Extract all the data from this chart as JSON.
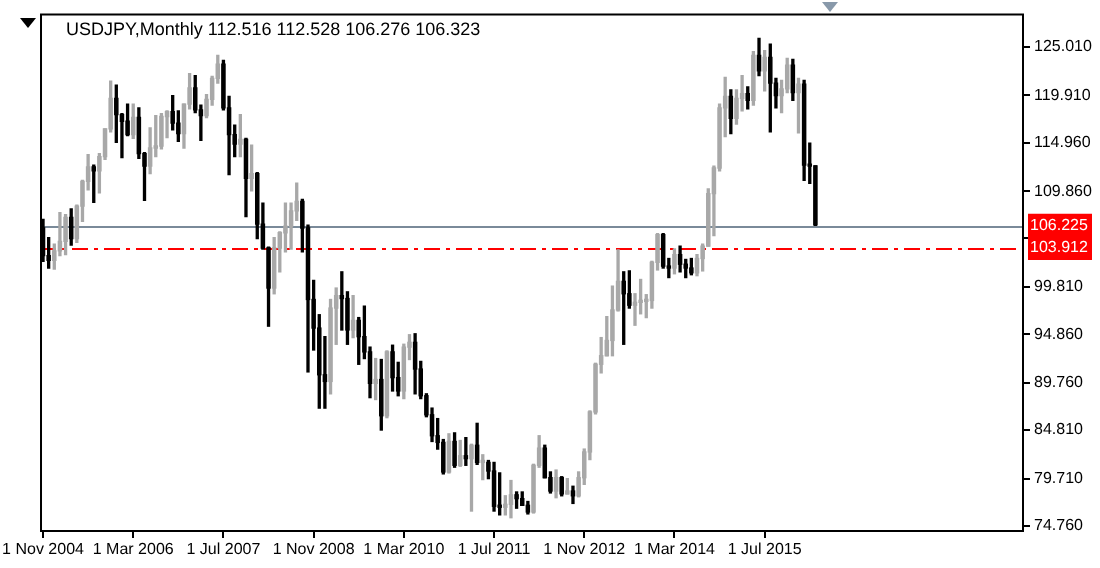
{
  "chart_data": {
    "type": "candlestick",
    "title": "USDJPY,Monthly 112.516 112.528 106.276 106.323",
    "x": [
      "2004-11",
      "2004-12",
      "2005-01",
      "2005-02",
      "2005-03",
      "2005-04",
      "2005-05",
      "2005-06",
      "2005-07",
      "2005-08",
      "2005-09",
      "2005-10",
      "2005-11",
      "2005-12",
      "2006-01",
      "2006-02",
      "2006-03",
      "2006-04",
      "2006-05",
      "2006-06",
      "2006-07",
      "2006-08",
      "2006-09",
      "2006-10",
      "2006-11",
      "2006-12",
      "2007-01",
      "2007-02",
      "2007-03",
      "2007-04",
      "2007-05",
      "2007-06",
      "2007-07",
      "2007-08",
      "2007-09",
      "2007-10",
      "2007-11",
      "2007-12",
      "2008-01",
      "2008-02",
      "2008-03",
      "2008-04",
      "2008-05",
      "2008-06",
      "2008-07",
      "2008-08",
      "2008-09",
      "2008-10",
      "2008-11",
      "2008-12",
      "2009-01",
      "2009-02",
      "2009-03",
      "2009-04",
      "2009-05",
      "2009-06",
      "2009-07",
      "2009-08",
      "2009-09",
      "2009-10",
      "2009-11",
      "2009-12",
      "2010-01",
      "2010-02",
      "2010-03",
      "2010-04",
      "2010-05",
      "2010-06",
      "2010-07",
      "2010-08",
      "2010-09",
      "2010-10",
      "2010-11",
      "2010-12",
      "2011-01",
      "2011-02",
      "2011-03",
      "2011-04",
      "2011-05",
      "2011-06",
      "2011-07",
      "2011-08",
      "2011-09",
      "2011-10",
      "2011-11",
      "2011-12",
      "2012-01",
      "2012-02",
      "2012-03",
      "2012-04",
      "2012-05",
      "2012-06",
      "2012-07",
      "2012-08",
      "2012-09",
      "2012-10",
      "2012-11",
      "2012-12",
      "2013-01",
      "2013-02",
      "2013-03",
      "2013-04",
      "2013-05",
      "2013-06",
      "2013-07",
      "2013-08",
      "2013-09",
      "2013-10",
      "2013-11",
      "2013-12",
      "2014-01",
      "2014-02",
      "2014-03",
      "2014-04",
      "2014-05",
      "2014-06",
      "2014-07",
      "2014-08",
      "2014-09",
      "2014-10",
      "2014-11",
      "2014-12",
      "2015-01",
      "2015-02",
      "2015-03",
      "2015-04",
      "2015-05",
      "2015-06",
      "2015-07",
      "2015-08",
      "2015-09",
      "2015-10",
      "2015-11",
      "2015-12",
      "2016-01",
      "2016-02",
      "2016-03",
      "2016-04"
    ],
    "ohlc": [
      [
        106.0,
        106.9,
        102.5,
        103.1
      ],
      [
        103.1,
        105.0,
        101.8,
        102.6
      ],
      [
        102.6,
        104.3,
        101.7,
        103.6
      ],
      [
        103.6,
        107.6,
        103.1,
        104.6
      ],
      [
        104.6,
        107.4,
        103.2,
        107.1
      ],
      [
        107.1,
        108.0,
        104.2,
        104.9
      ],
      [
        104.9,
        108.4,
        104.5,
        108.3
      ],
      [
        108.3,
        111.0,
        106.7,
        110.9
      ],
      [
        110.9,
        113.7,
        110.0,
        112.4
      ],
      [
        112.4,
        112.6,
        108.7,
        112.0
      ],
      [
        112.0,
        113.8,
        109.7,
        113.5
      ],
      [
        113.5,
        116.4,
        113.2,
        116.4
      ],
      [
        116.4,
        121.4,
        116.1,
        119.6
      ],
      [
        119.6,
        121.0,
        115.0,
        117.9
      ],
      [
        117.9,
        118.0,
        113.4,
        117.2
      ],
      [
        117.2,
        119.0,
        115.7,
        115.8
      ],
      [
        115.8,
        119.0,
        115.4,
        117.6
      ],
      [
        117.6,
        118.6,
        113.3,
        113.8
      ],
      [
        113.8,
        113.9,
        108.9,
        112.5
      ],
      [
        112.5,
        116.5,
        111.7,
        114.4
      ],
      [
        114.4,
        117.8,
        113.5,
        114.6
      ],
      [
        114.6,
        118.0,
        114.3,
        117.7
      ],
      [
        117.7,
        118.3,
        115.5,
        118.2
      ],
      [
        118.2,
        119.9,
        116.3,
        117.0
      ],
      [
        117.0,
        118.3,
        115.1,
        115.9
      ],
      [
        115.9,
        119.0,
        114.4,
        119.0
      ],
      [
        119.0,
        122.2,
        118.5,
        120.7
      ],
      [
        120.7,
        122.0,
        118.1,
        118.4
      ],
      [
        118.4,
        118.9,
        115.2,
        117.8
      ],
      [
        117.8,
        120.0,
        117.6,
        119.5
      ],
      [
        119.5,
        121.9,
        118.9,
        121.7
      ],
      [
        121.7,
        124.1,
        121.2,
        123.2
      ],
      [
        123.2,
        123.6,
        118.4,
        118.6
      ],
      [
        118.6,
        119.8,
        111.6,
        115.8
      ],
      [
        115.8,
        116.8,
        113.5,
        114.8
      ],
      [
        114.8,
        117.9,
        113.5,
        115.3
      ],
      [
        115.3,
        115.4,
        107.2,
        111.2
      ],
      [
        111.2,
        114.7,
        109.9,
        111.7
      ],
      [
        111.7,
        111.8,
        104.9,
        106.4
      ],
      [
        106.4,
        108.6,
        103.8,
        103.9
      ],
      [
        103.9,
        104.0,
        95.7,
        99.7
      ],
      [
        99.7,
        105.0,
        99.1,
        103.9
      ],
      [
        103.9,
        105.6,
        101.4,
        105.5
      ],
      [
        105.5,
        108.6,
        103.5,
        106.2
      ],
      [
        106.2,
        108.6,
        103.8,
        107.8
      ],
      [
        107.8,
        110.7,
        106.8,
        108.8
      ],
      [
        108.8,
        109.0,
        103.5,
        106.0
      ],
      [
        106.0,
        106.3,
        90.9,
        98.5
      ],
      [
        98.5,
        100.5,
        93.2,
        95.5
      ],
      [
        95.5,
        96.9,
        87.1,
        90.6
      ],
      [
        90.6,
        94.6,
        87.1,
        89.9
      ],
      [
        89.9,
        98.5,
        88.6,
        97.6
      ],
      [
        97.6,
        99.7,
        93.8,
        98.9
      ],
      [
        98.9,
        101.4,
        95.3,
        98.6
      ],
      [
        98.6,
        99.3,
        93.8,
        95.3
      ],
      [
        95.3,
        98.9,
        94.5,
        96.3
      ],
      [
        96.3,
        96.6,
        91.7,
        94.6
      ],
      [
        94.6,
        97.8,
        92.3,
        93.0
      ],
      [
        93.0,
        93.5,
        88.2,
        89.7
      ],
      [
        89.7,
        92.3,
        88.0,
        90.1
      ],
      [
        90.1,
        92.2,
        84.8,
        86.3
      ],
      [
        86.3,
        93.1,
        86.1,
        93.0
      ],
      [
        93.0,
        93.7,
        88.9,
        90.3
      ],
      [
        90.3,
        91.9,
        88.4,
        88.9
      ],
      [
        88.9,
        93.8,
        88.1,
        93.5
      ],
      [
        93.5,
        94.8,
        92.2,
        94.0
      ],
      [
        94.0,
        94.9,
        88.6,
        91.2
      ],
      [
        91.2,
        92.0,
        88.1,
        88.4
      ],
      [
        88.4,
        88.6,
        86.2,
        86.4
      ],
      [
        86.4,
        87.1,
        83.6,
        84.2
      ],
      [
        84.2,
        86.0,
        82.8,
        83.5
      ],
      [
        83.5,
        83.8,
        80.2,
        80.4
      ],
      [
        80.4,
        84.4,
        80.3,
        83.6
      ],
      [
        83.6,
        84.5,
        80.9,
        81.1
      ],
      [
        81.1,
        83.7,
        81.0,
        82.1
      ],
      [
        82.1,
        84.0,
        81.1,
        81.8
      ],
      [
        81.8,
        83.3,
        76.3,
        83.2
      ],
      [
        83.2,
        85.5,
        81.2,
        81.4
      ],
      [
        81.4,
        82.2,
        79.6,
        81.4
      ],
      [
        81.4,
        81.6,
        79.7,
        80.5
      ],
      [
        80.5,
        81.4,
        76.3,
        76.8
      ],
      [
        76.8,
        80.3,
        75.9,
        76.7
      ],
      [
        76.7,
        77.9,
        75.9,
        77.0
      ],
      [
        77.0,
        79.5,
        75.6,
        78.0
      ],
      [
        78.0,
        78.3,
        76.6,
        77.6
      ],
      [
        77.6,
        78.3,
        76.9,
        76.9
      ],
      [
        76.9,
        77.3,
        76.0,
        76.2
      ],
      [
        76.2,
        81.2,
        76.1,
        81.1
      ],
      [
        81.1,
        84.2,
        80.9,
        82.9
      ],
      [
        82.9,
        83.2,
        79.8,
        79.8
      ],
      [
        79.8,
        80.4,
        78.2,
        78.4
      ],
      [
        78.4,
        80.6,
        77.7,
        79.8
      ],
      [
        79.8,
        79.9,
        77.9,
        78.1
      ],
      [
        78.1,
        79.7,
        78.1,
        78.4
      ],
      [
        78.4,
        78.9,
        77.1,
        77.9
      ],
      [
        77.9,
        80.4,
        77.8,
        79.8
      ],
      [
        79.8,
        82.8,
        79.1,
        82.5
      ],
      [
        82.5,
        86.8,
        81.7,
        86.7
      ],
      [
        86.7,
        91.8,
        86.5,
        91.7
      ],
      [
        91.7,
        94.5,
        90.8,
        92.6
      ],
      [
        92.6,
        96.7,
        92.6,
        94.2
      ],
      [
        94.2,
        99.9,
        92.6,
        97.4
      ],
      [
        97.4,
        103.7,
        97.3,
        100.4
      ],
      [
        100.4,
        101.4,
        93.8,
        99.1
      ],
      [
        99.1,
        101.5,
        97.6,
        97.9
      ],
      [
        97.9,
        99.1,
        95.8,
        98.2
      ],
      [
        98.2,
        100.6,
        97.0,
        98.3
      ],
      [
        98.3,
        99.0,
        96.6,
        98.4
      ],
      [
        98.4,
        102.5,
        97.6,
        102.4
      ],
      [
        102.4,
        105.4,
        101.6,
        105.3
      ],
      [
        105.3,
        105.4,
        101.8,
        102.0
      ],
      [
        102.0,
        102.8,
        100.8,
        101.8
      ],
      [
        101.8,
        103.8,
        101.2,
        103.2
      ],
      [
        103.2,
        104.1,
        101.4,
        102.2
      ],
      [
        102.2,
        102.7,
        100.8,
        101.8
      ],
      [
        101.8,
        102.8,
        101.1,
        101.3
      ],
      [
        101.3,
        103.2,
        101.0,
        102.8
      ],
      [
        102.8,
        104.3,
        101.5,
        104.1
      ],
      [
        104.1,
        110.1,
        104.1,
        109.6
      ],
      [
        109.6,
        112.5,
        105.2,
        112.3
      ],
      [
        112.3,
        119.0,
        112.0,
        118.6
      ],
      [
        118.6,
        121.8,
        115.6,
        119.8
      ],
      [
        119.8,
        120.5,
        115.9,
        117.5
      ],
      [
        117.5,
        120.5,
        116.9,
        119.6
      ],
      [
        119.6,
        122.0,
        118.3,
        120.1
      ],
      [
        120.1,
        120.8,
        118.5,
        119.4
      ],
      [
        119.4,
        124.5,
        118.9,
        124.1
      ],
      [
        124.1,
        125.9,
        122.0,
        122.5
      ],
      [
        122.5,
        124.6,
        120.4,
        123.9
      ],
      [
        123.9,
        125.3,
        116.1,
        121.2
      ],
      [
        121.2,
        121.7,
        118.6,
        119.9
      ],
      [
        119.9,
        121.5,
        118.1,
        120.6
      ],
      [
        120.6,
        123.8,
        120.2,
        123.1
      ],
      [
        123.1,
        123.7,
        119.4,
        120.2
      ],
      [
        120.2,
        121.7,
        116.0,
        121.1
      ],
      [
        121.1,
        121.5,
        111.0,
        112.6
      ],
      [
        112.6,
        114.9,
        110.7,
        112.5
      ],
      [
        112.516,
        112.528,
        106.276,
        106.323
      ]
    ],
    "xlim": [
      "2004-10-15",
      "2019-05"
    ],
    "xticks": [
      {
        "value": "2004-11",
        "label": "1 Nov 2004"
      },
      {
        "value": "2006-03",
        "label": "1 Mar 2006"
      },
      {
        "value": "2007-07",
        "label": "1 Jul 2007"
      },
      {
        "value": "2008-11",
        "label": "1 Nov 2008"
      },
      {
        "value": "2010-03",
        "label": "1 Mar 2010"
      },
      {
        "value": "2011-07",
        "label": "1 Jul 2011"
      },
      {
        "value": "2012-11",
        "label": "1 Nov 2012"
      },
      {
        "value": "2014-03",
        "label": "1 Mar 2014"
      },
      {
        "value": "2015-07",
        "label": "1 Jul 2015"
      }
    ],
    "ylim": [
      74.1,
      128.5
    ],
    "yticks": [
      {
        "value": 74.76,
        "label": "74.760"
      },
      {
        "value": 79.71,
        "label": "79.710"
      },
      {
        "value": 84.81,
        "label": "84.810"
      },
      {
        "value": 89.76,
        "label": "89.760"
      },
      {
        "value": 94.86,
        "label": "94.860"
      },
      {
        "value": 99.81,
        "label": "99.810"
      },
      {
        "value": 104.91,
        "label": null
      },
      {
        "value": 109.86,
        "label": "109.860"
      },
      {
        "value": 114.96,
        "label": "114.960"
      },
      {
        "value": 119.91,
        "label": "119.910"
      },
      {
        "value": 125.01,
        "label": "125.010"
      }
    ],
    "ref_lines": [
      {
        "axis": "y",
        "value": 106.225,
        "label": "106.225",
        "color": "#7a8a99",
        "line_style": "solid"
      },
      {
        "axis": "y",
        "value": 103.912,
        "label": "103.912",
        "color": "#ff0000",
        "line_style": "dashed"
      }
    ],
    "grid": false,
    "legend": false
  }
}
